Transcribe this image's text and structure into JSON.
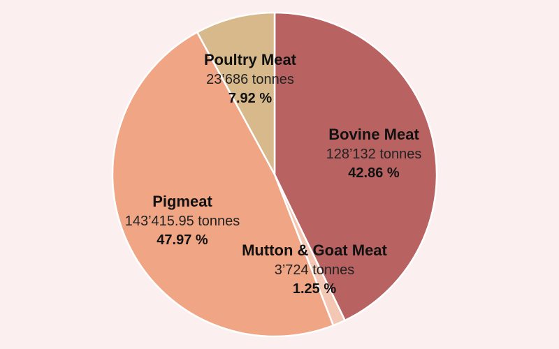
{
  "colors": {
    "background": "#fbeff0",
    "slice_stroke": "#ffffff"
  },
  "chart_data": {
    "type": "pie",
    "start_angle_deg": 0,
    "direction": "clockwise",
    "slices": [
      {
        "key": "bovine",
        "label": "Bovine Meat",
        "value_text": "128’132 tonnes",
        "percent_text": "42.86 %",
        "value": 128132,
        "percent": 42.86,
        "color": "#b96262"
      },
      {
        "key": "mutton",
        "label": "Mutton & Goat Meat",
        "value_text": "3’724 tonnes",
        "percent_text": "1.25 %",
        "value": 3724,
        "percent": 1.25,
        "color": "#f4c7b4"
      },
      {
        "key": "pigmeat",
        "label": "Pigmeat",
        "value_text": "143’415.95 tonnes",
        "percent_text": "47.97 %",
        "value": 143415.95,
        "percent": 47.97,
        "color": "#f0a584"
      },
      {
        "key": "poultry",
        "label": "Poultry Meat",
        "value_text": "23’686 tonnes",
        "percent_text": "7.92 %",
        "value": 23686,
        "percent": 7.92,
        "color": "#d7b98c"
      }
    ]
  }
}
